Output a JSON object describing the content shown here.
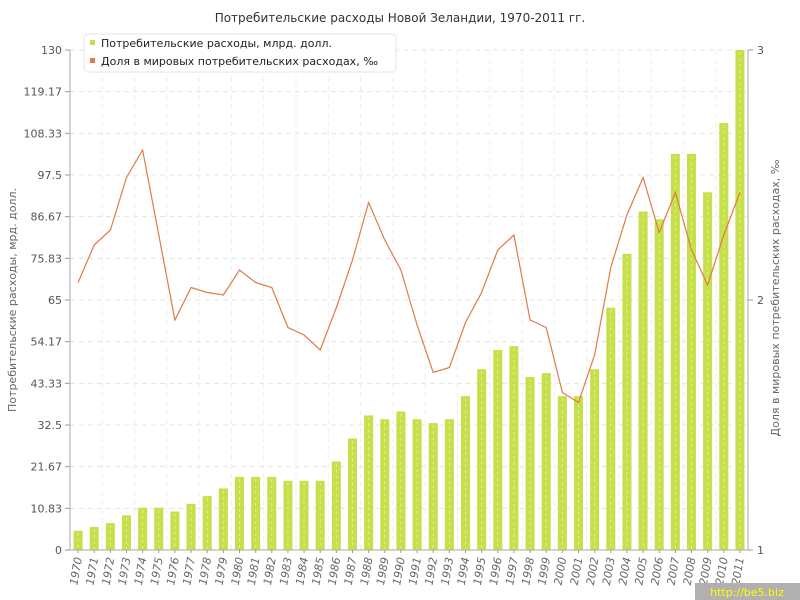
{
  "chart_data": {
    "type": "bar",
    "title": "Потребительские расходы Новой Зеландии, 1970-2011 гг.",
    "ylabel": "Потребительские расходы, мрд. долл.",
    "y2label": "Доля в мировых потребительских расходах, ‰",
    "ylim": [
      0,
      130
    ],
    "y2lim": [
      1,
      3
    ],
    "yticks": [
      "0",
      "10.83",
      "21.67",
      "32.5",
      "43.33",
      "54.17",
      "65",
      "75.83",
      "86.67",
      "97.5",
      "108.33",
      "119.17",
      "130"
    ],
    "y2ticks": [
      "1",
      "2",
      "3"
    ],
    "categories": [
      "1970",
      "1971",
      "1972",
      "1973",
      "1974",
      "1975",
      "1976",
      "1977",
      "1978",
      "1979",
      "1980",
      "1981",
      "1982",
      "1983",
      "1984",
      "1985",
      "1986",
      "1987",
      "1988",
      "1989",
      "1990",
      "1991",
      "1992",
      "1993",
      "1994",
      "1995",
      "1996",
      "1997",
      "1998",
      "1999",
      "2000",
      "2001",
      "2002",
      "2003",
      "2004",
      "2005",
      "2006",
      "2007",
      "2008",
      "2009",
      "2010",
      "2011"
    ],
    "grid": true,
    "legend_position": "top-left",
    "series": [
      {
        "name": "Потребительские расходы, млрд. долл.",
        "type": "bar",
        "axis": "left",
        "color": "#c6e04a",
        "values": [
          5,
          6,
          7,
          9,
          11,
          11,
          10,
          12,
          14,
          16,
          19,
          19,
          19,
          18,
          18,
          18,
          23,
          29,
          35,
          34,
          36,
          34,
          33,
          34,
          40,
          47,
          52,
          53,
          45,
          46,
          40,
          40,
          47,
          63,
          77,
          88,
          86,
          103,
          103,
          93,
          111,
          130
        ]
      },
      {
        "name": "Доля в мировых потребительских расходах, ‰",
        "type": "line",
        "axis": "right",
        "color": "#e07a4a",
        "values": [
          2.07,
          2.22,
          2.28,
          2.49,
          2.6,
          2.26,
          1.92,
          2.05,
          2.03,
          2.02,
          2.12,
          2.07,
          2.05,
          1.89,
          1.86,
          1.8,
          1.97,
          2.16,
          2.39,
          2.24,
          2.12,
          1.9,
          1.71,
          1.73,
          1.91,
          2.03,
          2.2,
          2.26,
          1.92,
          1.89,
          1.63,
          1.59,
          1.78,
          2.13,
          2.34,
          2.49,
          2.27,
          2.43,
          2.2,
          2.06,
          2.26,
          2.43
        ]
      }
    ]
  },
  "watermark": "http://be5.biz"
}
